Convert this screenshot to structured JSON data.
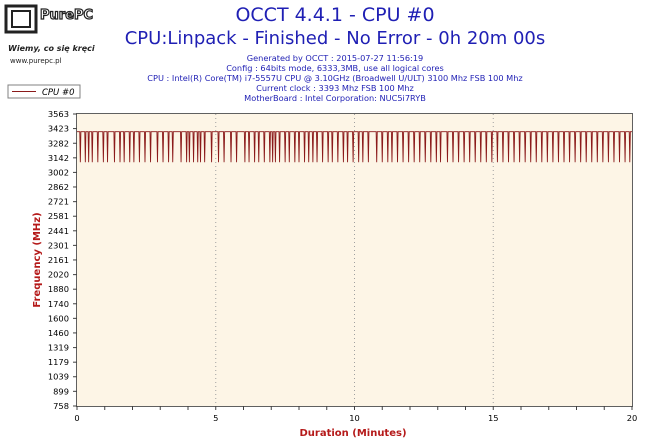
{
  "logo": {
    "brand": "PurePC",
    "tagline": "Wiemy, co się kręci",
    "url": "www.purepc.pl"
  },
  "title": "OCCT 4.4.1 - CPU #0",
  "subtitle": "CPU:Linpack - Finished - No Error - 0h 20m 00s",
  "info_lines": [
    "Generated by OCCT : 2015-07-27 11:56:19",
    "Config : 64bits mode, 6333,3MB, use all logical cores",
    "CPU : Intel(R) Core(TM) i7-5557U CPU @ 3.10GHz (Broadwell U/ULT) 3100 Mhz FSB 100 Mhz",
    "Current clock : 3393 Mhz FSB 100 Mhz",
    "MotherBoard : Intel Corporation: NUC5i7RYB"
  ],
  "legend": {
    "label": "CPU #0"
  },
  "colors": {
    "text_blue": "#1f1fb4",
    "series": "#8b1a1a",
    "axis_label": "#b51a1a",
    "plot_bg": "#fdf5e6",
    "plot_grid": "#a0a0a0"
  },
  "chart_data": {
    "type": "line",
    "xlabel": "Duration (Minutes)",
    "ylabel": "Frequency (MHz)",
    "xlim": [
      0,
      20
    ],
    "ylim": [
      758,
      3563
    ],
    "x_ticks": [
      0,
      1,
      2,
      3,
      4,
      5,
      6,
      7,
      8,
      9,
      10,
      11,
      12,
      13,
      14,
      15,
      16,
      17,
      18,
      19,
      20
    ],
    "x_tick_labels": [
      "0",
      "5",
      "10",
      "15",
      "20"
    ],
    "x_tick_label_values": [
      0,
      5,
      10,
      15,
      20
    ],
    "y_ticks": [
      758,
      899,
      1039,
      1179,
      1319,
      1460,
      1600,
      1740,
      1880,
      2020,
      2161,
      2301,
      2441,
      2581,
      2721,
      2862,
      3002,
      3142,
      3282,
      3423,
      3563
    ],
    "grid": "dotted vertical at 5-minute intervals",
    "legend_placement": "top-left",
    "series": [
      {
        "name": "CPU #0",
        "baseline": 3393,
        "dip_value": 3100,
        "dip_times": [
          0.12,
          0.3,
          0.42,
          0.55,
          0.75,
          0.95,
          1.1,
          1.35,
          1.55,
          1.7,
          1.9,
          2.05,
          2.25,
          2.45,
          2.65,
          2.9,
          3.1,
          3.3,
          3.45,
          3.75,
          3.95,
          4.05,
          4.2,
          4.35,
          4.45,
          4.6,
          4.85,
          5.1,
          5.3,
          5.55,
          5.75,
          6.05,
          6.2,
          6.4,
          6.55,
          6.75,
          6.95,
          7.05,
          7.15,
          7.3,
          7.5,
          7.65,
          7.85,
          8.0,
          8.2,
          8.35,
          8.5,
          8.65,
          8.85,
          9.05,
          9.2,
          9.4,
          9.6,
          9.75,
          9.95,
          10.15,
          10.3,
          10.5,
          10.8,
          11.0,
          11.2,
          11.35,
          11.55,
          11.75,
          11.95,
          12.15,
          12.35,
          12.55,
          12.75,
          12.95,
          13.1,
          13.35,
          13.55,
          13.75,
          13.95,
          14.15,
          14.35,
          14.55,
          14.75,
          14.95,
          15.15,
          15.35,
          15.55,
          15.75,
          15.95,
          16.15,
          16.35,
          16.55,
          16.75,
          16.95,
          17.15,
          17.35,
          17.55,
          17.75,
          17.95,
          18.15,
          18.35,
          18.55,
          18.75,
          18.95,
          19.15,
          19.35,
          19.55,
          19.75,
          19.92
        ]
      }
    ]
  }
}
